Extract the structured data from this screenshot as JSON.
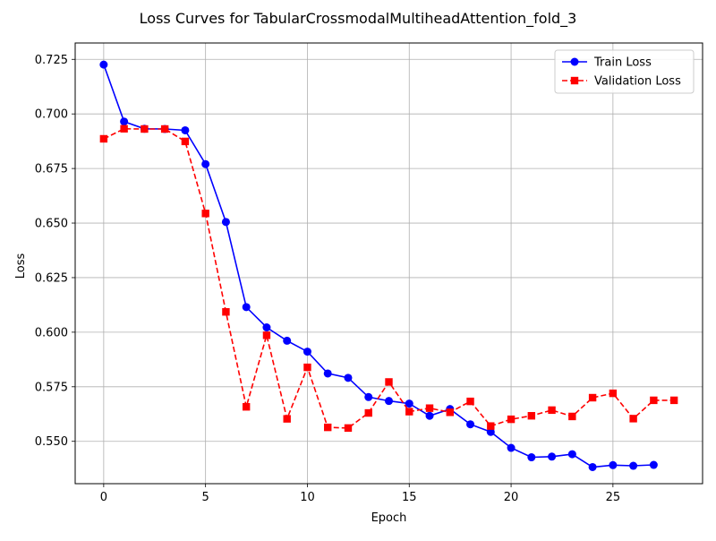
{
  "chart_data": {
    "type": "line",
    "title": "Loss Curves for TabularCrossmodalMultiheadAttention_fold_3",
    "xlabel": "Epoch",
    "ylabel": "Loss",
    "xlim": [
      -1.4,
      29.4
    ],
    "ylim": [
      0.5306,
      0.7325
    ],
    "x_ticks": [
      0,
      5,
      10,
      15,
      20,
      25
    ],
    "y_ticks": [
      0.55,
      0.575,
      0.6,
      0.625,
      0.65,
      0.675,
      0.7,
      0.725
    ],
    "grid": true,
    "legend_position": "top-right",
    "series": [
      {
        "name": "Train Loss",
        "color": "#0000ff",
        "line_style": "solid",
        "marker": "circle",
        "x": [
          0,
          1,
          2,
          3,
          4,
          5,
          6,
          7,
          8,
          9,
          10,
          11,
          12,
          13,
          14,
          15,
          16,
          17,
          18,
          19,
          20,
          21,
          22,
          23,
          24,
          25,
          26,
          27
        ],
        "y": [
          0.7226,
          0.6965,
          0.6932,
          0.6931,
          0.6925,
          0.677,
          0.6505,
          0.6115,
          0.6022,
          0.5961,
          0.5911,
          0.5811,
          0.5791,
          0.5703,
          0.5685,
          0.5673,
          0.5617,
          0.5648,
          0.5578,
          0.5543,
          0.547,
          0.5427,
          0.543,
          0.5441,
          0.5382,
          0.5391,
          0.5388,
          0.5392
        ]
      },
      {
        "name": "Validation Loss",
        "color": "#ff0000",
        "line_style": "dashed",
        "marker": "square",
        "x": [
          0,
          1,
          2,
          3,
          4,
          5,
          6,
          7,
          8,
          9,
          10,
          11,
          12,
          13,
          14,
          15,
          16,
          17,
          18,
          19,
          20,
          21,
          22,
          23,
          24,
          25,
          26,
          27,
          28
        ],
        "y": [
          0.6886,
          0.6932,
          0.6931,
          0.6931,
          0.6874,
          0.6544,
          0.6093,
          0.5658,
          0.5986,
          0.5603,
          0.5839,
          0.5564,
          0.5561,
          0.563,
          0.5772,
          0.5636,
          0.5652,
          0.5633,
          0.5683,
          0.557,
          0.5601,
          0.5617,
          0.5643,
          0.5614,
          0.57,
          0.572,
          0.5604,
          0.5688,
          0.5688
        ]
      }
    ]
  }
}
